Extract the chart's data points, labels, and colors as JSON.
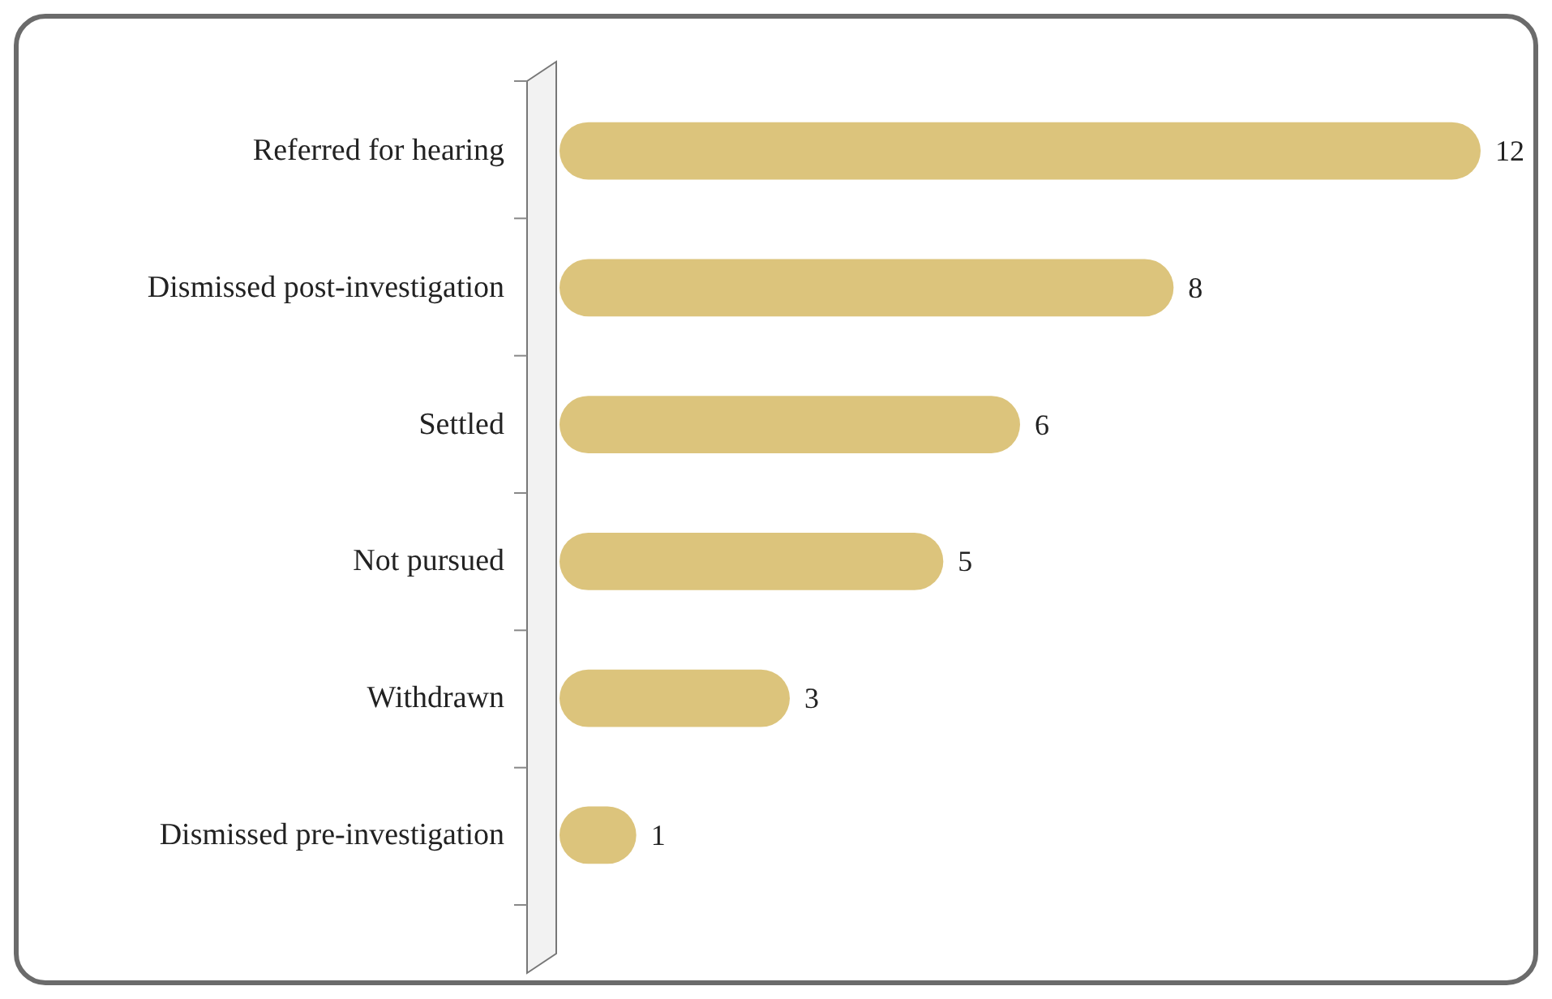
{
  "chart_data": {
    "type": "bar",
    "orientation": "horizontal",
    "categories": [
      "Referred for hearing",
      "Dismissed post-investigation",
      "Settled",
      "Not pursued",
      "Withdrawn",
      "Dismissed pre-investigation"
    ],
    "values": [
      12,
      8,
      6,
      5,
      3,
      1
    ],
    "color": "#dcc47c",
    "data_labels": true
  }
}
